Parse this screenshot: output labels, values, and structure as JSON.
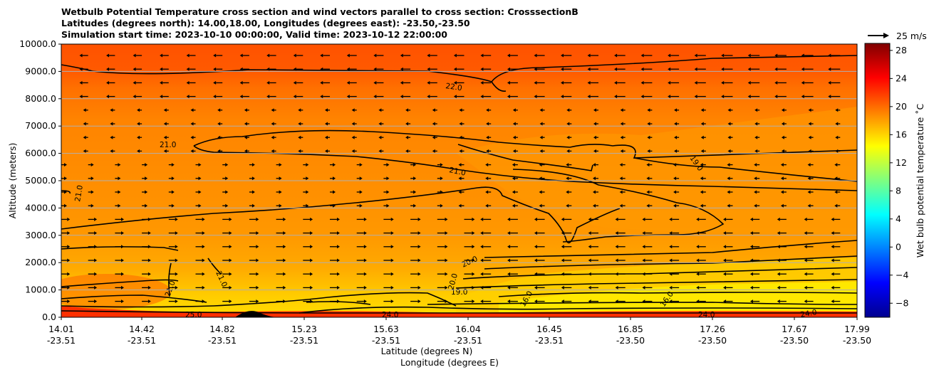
{
  "chart_data": {
    "type": "contour",
    "title_lines": [
      "Wetbulb Potential Temperature cross section and wind vectors parallel to cross section: CrosssectionB",
      "Latitudes (degrees north): 14.00,18.00, Longitudes (degrees east): -23.50,-23.50",
      "Simulation start time: 2023-10-10 00:00:00, Valid time: 2023-10-12 22:00:00"
    ],
    "ylabel": "Altitude (meters)",
    "xlabel_lat": "Latitude (degrees N)",
    "xlabel_lon": "Longitude (degrees E)",
    "ylim": [
      0,
      10000
    ],
    "yticks": [
      "0.0",
      "1000.0",
      "2000.0",
      "3000.0",
      "4000.0",
      "5000.0",
      "6000.0",
      "7000.0",
      "8000.0",
      "9000.0",
      "10000.0"
    ],
    "xticks": [
      {
        "lat": "14.01",
        "lon": "-23.51"
      },
      {
        "lat": "14.42",
        "lon": "-23.51"
      },
      {
        "lat": "14.82",
        "lon": "-23.51"
      },
      {
        "lat": "15.23",
        "lon": "-23.51"
      },
      {
        "lat": "15.63",
        "lon": "-23.51"
      },
      {
        "lat": "16.04",
        "lon": "-23.51"
      },
      {
        "lat": "16.45",
        "lon": "-23.51"
      },
      {
        "lat": "16.85",
        "lon": "-23.50"
      },
      {
        "lat": "17.26",
        "lon": "-23.50"
      },
      {
        "lat": "17.67",
        "lon": "-23.50"
      },
      {
        "lat": "17.99",
        "lon": "-23.50"
      }
    ],
    "grid": "horizontal",
    "colorbar": {
      "label": "Wet bulb potential temperature ˚C",
      "ticks": [
        "28",
        "24",
        "20",
        "16",
        "12",
        "8",
        "4",
        "0",
        "−4",
        "−8"
      ],
      "range": [
        -10,
        29
      ],
      "colormap": "jet"
    },
    "wind_key": {
      "label": "25 m/s"
    },
    "contour_labels": [
      "22.0",
      "21.0",
      "21.0",
      "21.0",
      "19.0",
      "20.0",
      "20.0",
      "21.0",
      "21.0",
      "19.0",
      "16.0",
      "16.0",
      "24.0",
      "24.0",
      "24.0",
      "25.0"
    ],
    "colors": {
      "fill_main": "#ff8c00",
      "fill_top": "#ff5a00",
      "fill_bottom": "#ffe000",
      "contour": "#000000"
    }
  }
}
